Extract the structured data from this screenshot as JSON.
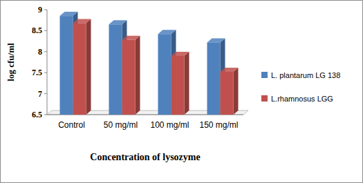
{
  "chart_data": {
    "type": "bar",
    "x_label": "Concentration of lysozyme",
    "y_label": "log cfu/ml",
    "categories": [
      "Control",
      "50 mg/ml",
      "100 mg/ml",
      "150 mg/ml"
    ],
    "series": [
      {
        "name": "L. plantarum LG 138",
        "color": "#4f81bd",
        "values": [
          8.85,
          8.65,
          8.42,
          8.22
        ]
      },
      {
        "name": "L.rhamnosus LGG",
        "color": "#c0504d",
        "values": [
          8.68,
          8.28,
          7.9,
          7.52
        ]
      }
    ],
    "ylim": [
      6.5,
      9
    ],
    "yticks": [
      6.5,
      7,
      7.5,
      8,
      8.5,
      9
    ],
    "grid": false,
    "legend": "right"
  }
}
